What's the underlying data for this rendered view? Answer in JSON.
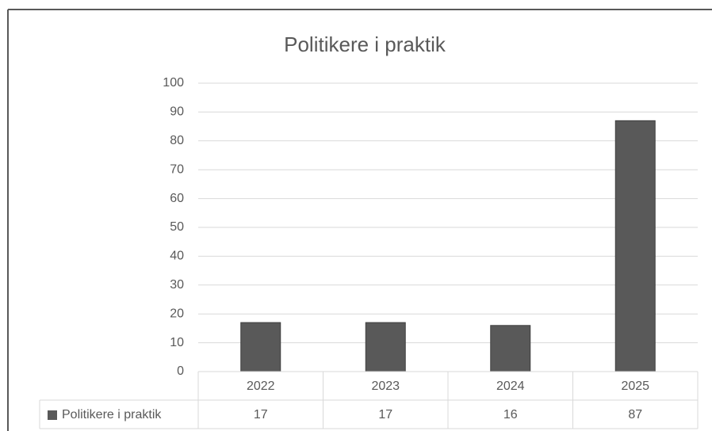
{
  "chart_data": {
    "type": "bar",
    "title": "Politikere i praktik",
    "categories": [
      "2022",
      "2023",
      "2024",
      "2025"
    ],
    "series": [
      {
        "name": "Politikere i praktik",
        "color": "#595959",
        "values": [
          17,
          17,
          16,
          87
        ]
      }
    ],
    "ylim": [
      0,
      100
    ],
    "yticks": [
      0,
      10,
      20,
      30,
      40,
      50,
      60,
      70,
      80,
      90,
      100
    ],
    "grid": true,
    "data_table": true
  }
}
